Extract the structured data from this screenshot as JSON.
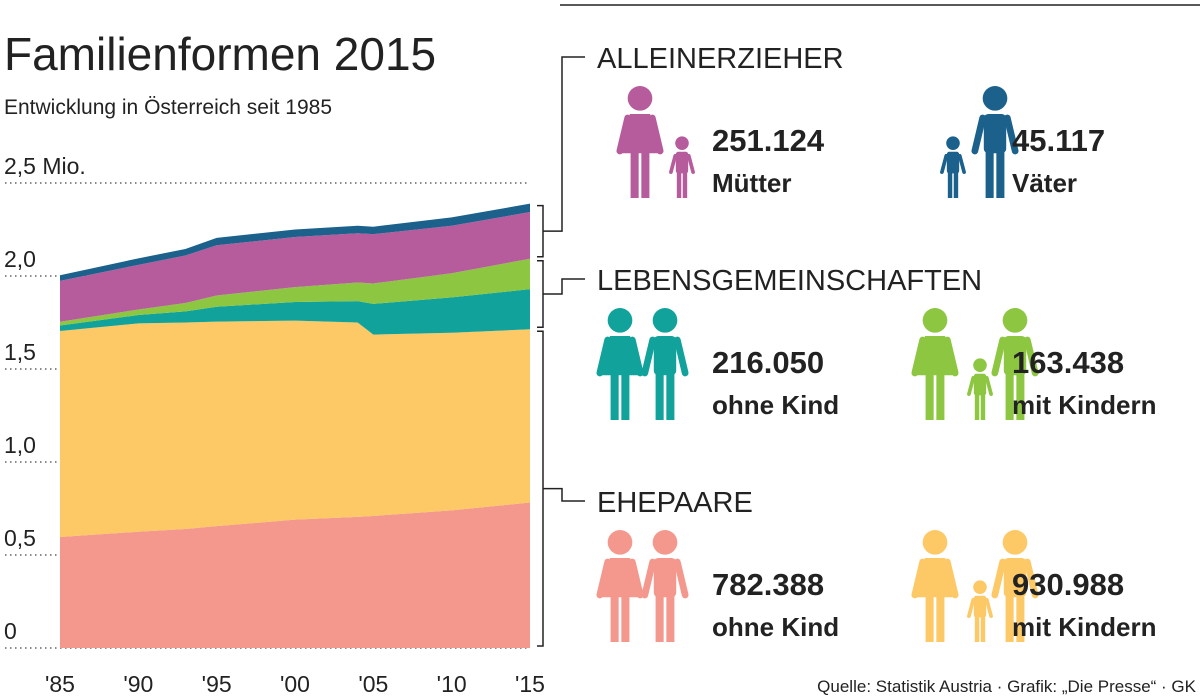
{
  "chart_data": {
    "type": "stacked-area",
    "title": "Familienformen 2015",
    "subtitle": "Entwicklung in Österreich seit 1985",
    "source": "Quelle: Statistik Austria · Grafik: „Die Presse“ · GK",
    "groups": [
      "ALLEINERZIEHER",
      "LEBENSGEMEINSCHAFTEN",
      "EHEPAARE"
    ],
    "x": [
      1985,
      1990,
      1993,
      1995,
      2000,
      2004,
      2005,
      2010,
      2015
    ],
    "xlim": [
      1985,
      2015
    ],
    "xticks": [
      {
        "value": 1985,
        "label": "'85"
      },
      {
        "value": 1990,
        "label": "'90"
      },
      {
        "value": 1995,
        "label": "'95"
      },
      {
        "value": 2000,
        "label": "'00"
      },
      {
        "value": 2005,
        "label": "'05"
      },
      {
        "value": 2010,
        "label": "'10"
      },
      {
        "value": 2015,
        "label": "'15"
      }
    ],
    "ylim": [
      0,
      2.5
    ],
    "yticks": [
      0,
      {
        "value": 0.5,
        "label": "0,5"
      },
      {
        "value": 1,
        "label": "1,0"
      },
      {
        "value": 1.5,
        "label": "1,5"
      },
      {
        "value": 2,
        "label": "2,0"
      },
      {
        "value": 2.5,
        "label": "2,5 Mio."
      }
    ],
    "grid": true,
    "series": [
      {
        "name": "ohne Kind",
        "color": "#f4978c",
        "values": [
          0.597,
          0.625,
          0.64,
          0.655,
          0.69,
          0.705,
          0.71,
          0.74,
          0.782388
        ],
        "value_labels": [
          null,
          null,
          null,
          null,
          null,
          null,
          null,
          null,
          "782.388"
        ]
      },
      {
        "name": "mit Kindern",
        "color": "#fdc866",
        "values": [
          1.107,
          1.12,
          1.11,
          1.1,
          1.07,
          1.045,
          0.975,
          0.955,
          0.930988
        ],
        "value_labels": [
          null,
          null,
          null,
          null,
          null,
          null,
          null,
          null,
          "930.988"
        ]
      },
      {
        "name": "ohne Kind",
        "color": "#11a39b",
        "values": [
          0.03,
          0.045,
          0.06,
          0.08,
          0.1,
          0.115,
          0.165,
          0.19,
          0.21605
        ],
        "value_labels": [
          null,
          null,
          null,
          null,
          null,
          null,
          null,
          null,
          "216.050"
        ]
      },
      {
        "name": "mit Kindern",
        "color": "#8dc640",
        "values": [
          0.02,
          0.03,
          0.045,
          0.06,
          0.08,
          0.1,
          0.11,
          0.13,
          0.163438
        ],
        "value_labels": [
          null,
          null,
          null,
          null,
          null,
          null,
          null,
          null,
          "163.438"
        ]
      },
      {
        "name": "Mütter",
        "color": "#b65c9d",
        "values": [
          0.22,
          0.24,
          0.255,
          0.27,
          0.27,
          0.265,
          0.265,
          0.255,
          0.251124
        ],
        "value_labels": [
          null,
          null,
          null,
          null,
          null,
          null,
          null,
          null,
          "251.124"
        ]
      },
      {
        "name": "Väter",
        "color": "#1b618b",
        "values": [
          0.03,
          0.035,
          0.035,
          0.04,
          0.04,
          0.04,
          0.04,
          0.045,
          0.045117
        ],
        "value_labels": [
          null,
          null,
          null,
          null,
          null,
          null,
          null,
          null,
          "45.117"
        ]
      }
    ]
  }
}
